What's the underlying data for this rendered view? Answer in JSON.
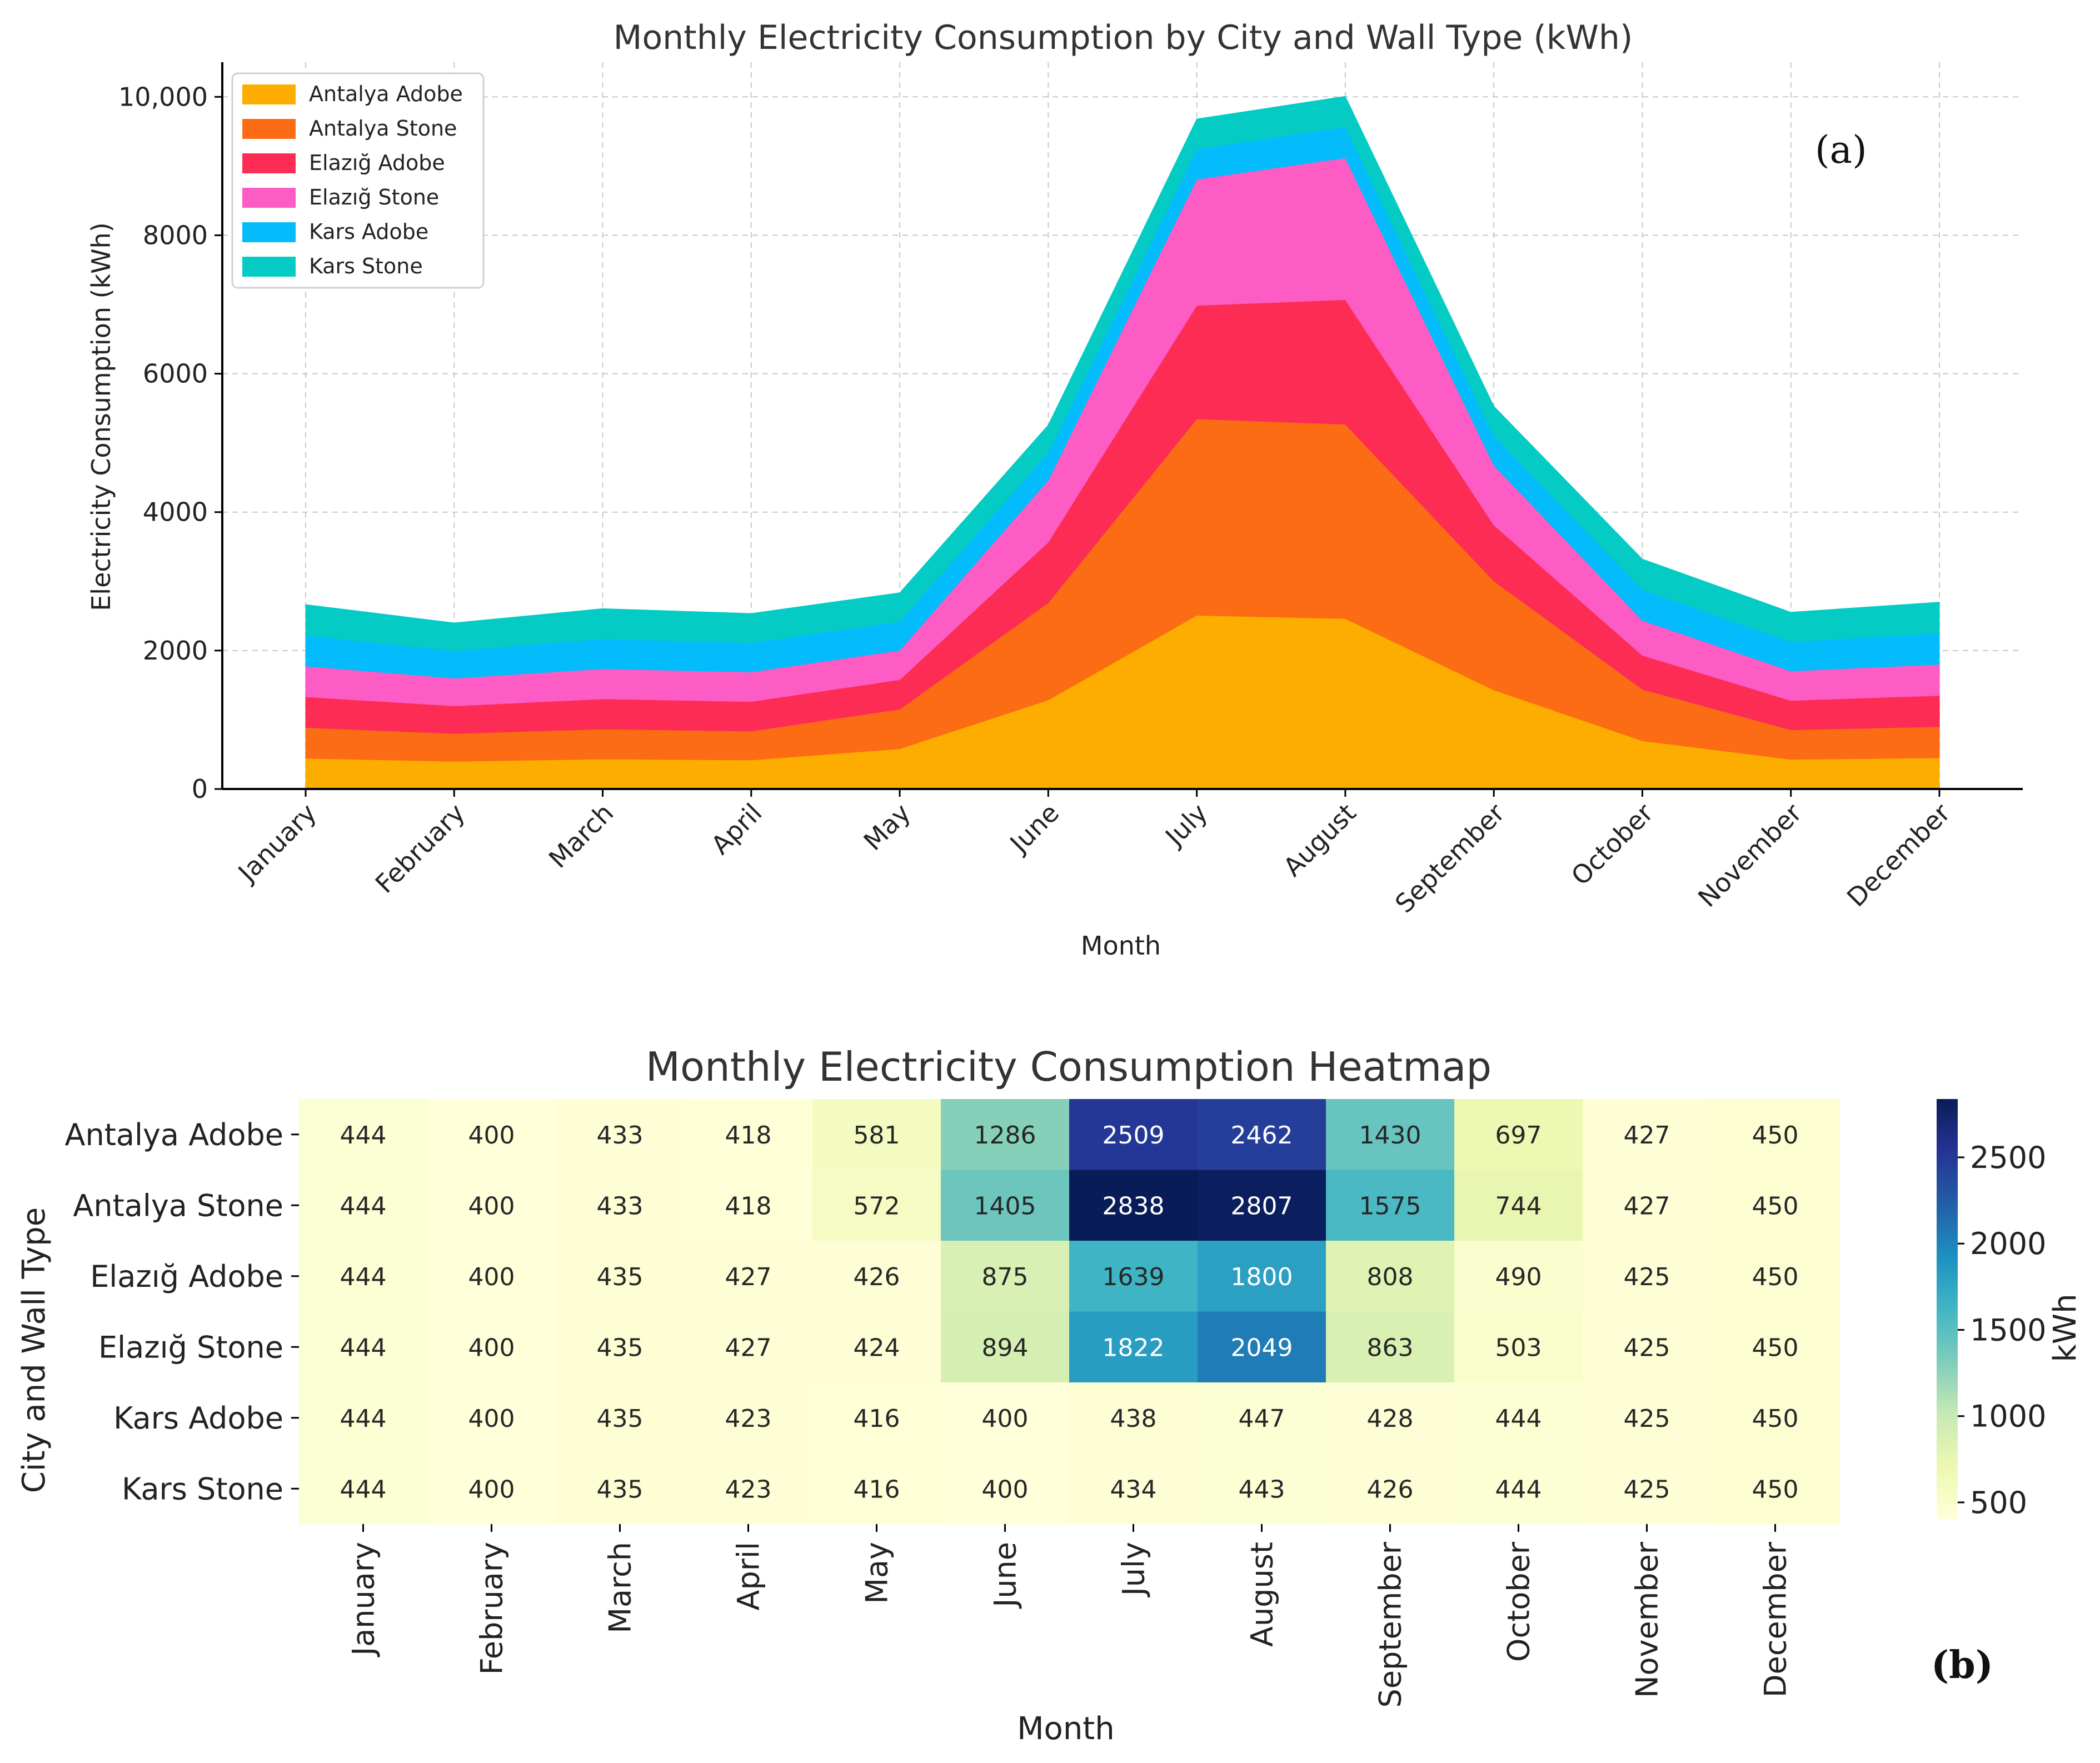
{
  "chart_data": [
    {
      "type": "area",
      "stacked": true,
      "title": "Monthly Electricity Consumption by City and Wall Type (kWh)",
      "xlabel": "Month",
      "ylabel": "Electricity Consumption (kWh)",
      "ylim": [
        0,
        10500
      ],
      "yticks": [
        0,
        2000,
        4000,
        6000,
        8000,
        10000
      ],
      "ytick_labels": [
        "0",
        "2000",
        "4000",
        "6000",
        "8000",
        "10,000"
      ],
      "grid": true,
      "legend_position": "top-left",
      "panel_label": "(a)",
      "categories": [
        "January",
        "February",
        "March",
        "April",
        "May",
        "June",
        "July",
        "August",
        "September",
        "October",
        "November",
        "December"
      ],
      "series": [
        {
          "name": "Antalya Adobe",
          "color": "#fcad00",
          "values": [
            444,
            400,
            433,
            418,
            581,
            1286,
            2509,
            2462,
            1430,
            697,
            427,
            450
          ]
        },
        {
          "name": "Antalya Stone",
          "color": "#fc6c14",
          "values": [
            444,
            400,
            433,
            418,
            572,
            1405,
            2838,
            2807,
            1575,
            744,
            427,
            450
          ]
        },
        {
          "name": "Elazığ Adobe",
          "color": "#fc2c54",
          "values": [
            444,
            400,
            435,
            427,
            426,
            875,
            1639,
            1800,
            808,
            490,
            425,
            450
          ]
        },
        {
          "name": "Elazığ Stone",
          "color": "#fc5cc4",
          "values": [
            444,
            400,
            435,
            427,
            424,
            894,
            1822,
            2049,
            863,
            503,
            425,
            450
          ]
        },
        {
          "name": "Kars Adobe",
          "color": "#04bcfc",
          "values": [
            444,
            400,
            435,
            423,
            416,
            400,
            438,
            447,
            428,
            444,
            425,
            450
          ]
        },
        {
          "name": "Kars Stone",
          "color": "#04ccc4",
          "values": [
            444,
            400,
            435,
            423,
            416,
            400,
            434,
            443,
            426,
            444,
            425,
            450
          ]
        }
      ]
    },
    {
      "type": "heatmap",
      "title": "Monthly Electricity Consumption Heatmap",
      "xlabel": "Month",
      "ylabel": "City and Wall Type",
      "panel_label": "(b)",
      "colorbar_label": "kWh",
      "colorbar_range": [
        400,
        2838
      ],
      "colorbar_ticks": [
        500,
        1000,
        1500,
        2000,
        2500
      ],
      "colormap": "YlGnBu",
      "rows": [
        "Antalya Adobe",
        "Antalya Stone",
        "Elazığ Adobe",
        "Elazığ Stone",
        "Kars Adobe",
        "Kars Stone"
      ],
      "columns": [
        "January",
        "February",
        "March",
        "April",
        "May",
        "June",
        "July",
        "August",
        "September",
        "October",
        "November",
        "December"
      ],
      "values": [
        [
          444,
          400,
          433,
          418,
          581,
          1286,
          2509,
          2462,
          1430,
          697,
          427,
          450
        ],
        [
          444,
          400,
          433,
          418,
          572,
          1405,
          2838,
          2807,
          1575,
          744,
          427,
          450
        ],
        [
          444,
          400,
          435,
          427,
          426,
          875,
          1639,
          1800,
          808,
          490,
          425,
          450
        ],
        [
          444,
          400,
          435,
          427,
          424,
          894,
          1822,
          2049,
          863,
          503,
          425,
          450
        ],
        [
          444,
          400,
          435,
          423,
          416,
          400,
          438,
          447,
          428,
          444,
          425,
          450
        ],
        [
          444,
          400,
          435,
          423,
          416,
          400,
          434,
          443,
          426,
          444,
          425,
          450
        ]
      ]
    }
  ]
}
